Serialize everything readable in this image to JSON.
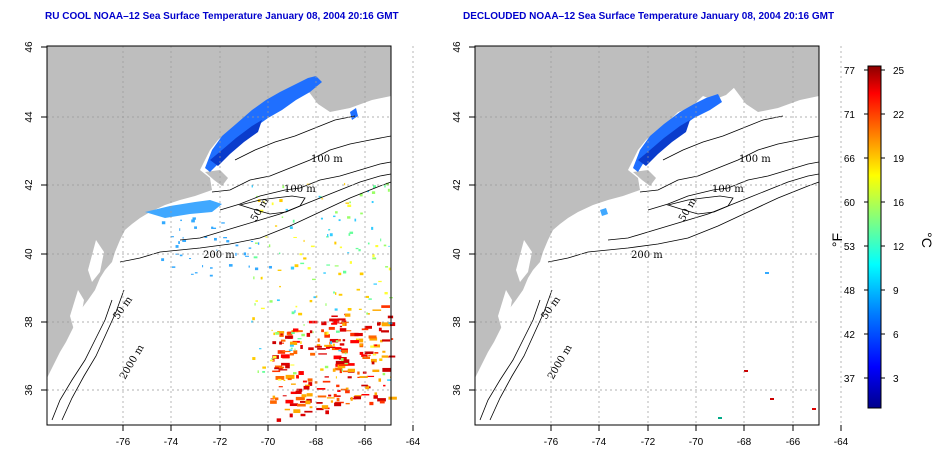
{
  "panels": [
    {
      "id": "left",
      "title": "RU COOL NOAA–12 Sea Surface Temperature January 08, 2004 20:16 GMT",
      "x_ticks": [
        "-76",
        "-74",
        "-72",
        "-70",
        "-68",
        "-66",
        "-64"
      ],
      "y_ticks": [
        "36",
        "38",
        "40",
        "42",
        "44",
        "46"
      ],
      "contour_labels": [
        "100 m",
        "100 m",
        "50 m",
        "200 m",
        "50 m",
        "2000 m"
      ]
    },
    {
      "id": "right",
      "title": "DECLOUDED NOAA–12 Sea Surface Temperature January 08, 2004 20:16 GMT",
      "x_ticks": [
        "-76",
        "-74",
        "-72",
        "-70",
        "-68",
        "-66",
        "-64"
      ],
      "y_ticks": [
        "36",
        "38",
        "40",
        "42",
        "44",
        "46"
      ],
      "contour_labels": [
        "100 m",
        "100 m",
        "50 m",
        "200 m",
        "50 m",
        "2000 m"
      ]
    }
  ],
  "colorbar": {
    "fahrenheit_labels": [
      "77",
      "71",
      "66",
      "60",
      "53",
      "48",
      "42",
      "37"
    ],
    "celsius_labels": [
      "25",
      "22",
      "19",
      "16",
      "12",
      "9",
      "6",
      "3"
    ],
    "f_unit": "°F",
    "c_unit": "°C",
    "colors": [
      "#00008b",
      "#0000ff",
      "#0080ff",
      "#00ffff",
      "#80ff80",
      "#ffff00",
      "#ff8000",
      "#ff0000",
      "#8b0000"
    ]
  },
  "land_color": "#bebebe",
  "grid_color": "#999999"
}
